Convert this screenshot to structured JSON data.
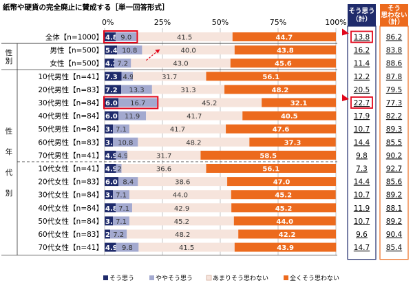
{
  "title": "紙幣や硬貨の完全廃止に賛成する［単一回答形式］",
  "chart_data": {
    "type": "bar",
    "orientation": "horizontal",
    "stacked": true,
    "title": "紙幣や硬貨の完全廃止に賛成する［単一回答形式］",
    "xlim": [
      0,
      100
    ],
    "x_ticks": [
      "0%",
      "25%",
      "50%",
      "75%",
      "100%"
    ],
    "series": [
      {
        "name": "そう思う",
        "color": "#1f2b6b"
      },
      {
        "name": "ややそう思う",
        "color": "#a3a9cf"
      },
      {
        "name": "あまりそう思わない",
        "color": "#f6e4dc"
      },
      {
        "name": "全くそう思わない",
        "color": "#ec6a1d"
      }
    ],
    "side_labels": [
      {
        "label": "性\n別"
      },
      {
        "label": "性\n年\n代\n別"
      }
    ],
    "rows": [
      {
        "label": "全体【n=1000】",
        "values": [
          4.8,
          9.0,
          41.5,
          44.7
        ],
        "agree_total": "13.8",
        "disagree_total": "86.2",
        "group": 0
      },
      {
        "label": "男性【n=500】",
        "values": [
          5.4,
          10.8,
          40.0,
          43.8
        ],
        "agree_total": "16.2",
        "disagree_total": "83.8",
        "group": 1
      },
      {
        "label": "女性【n=500】",
        "values": [
          4.2,
          7.2,
          43.0,
          45.6
        ],
        "agree_total": "11.4",
        "disagree_total": "88.6",
        "group": 1
      },
      {
        "label": "10代男性【n=41】",
        "values": [
          7.3,
          4.9,
          31.7,
          56.1
        ],
        "agree_total": "12.2",
        "disagree_total": "87.8",
        "group": 2
      },
      {
        "label": "20代男性【n=83】",
        "values": [
          7.2,
          13.3,
          31.3,
          48.2
        ],
        "agree_total": "20.5",
        "disagree_total": "79.5",
        "group": 2
      },
      {
        "label": "30代男性【n=84】",
        "values": [
          6.0,
          16.7,
          45.2,
          32.1
        ],
        "agree_total": "22.7",
        "disagree_total": "77.3",
        "group": 2
      },
      {
        "label": "40代男性【n=84】",
        "values": [
          6.0,
          11.9,
          41.7,
          40.5
        ],
        "agree_total": "17.9",
        "disagree_total": "82.2",
        "group": 2
      },
      {
        "label": "50代男性【n=84】",
        "values": [
          3.6,
          7.1,
          41.7,
          47.6
        ],
        "agree_total": "10.7",
        "disagree_total": "89.3",
        "group": 2
      },
      {
        "label": "60代男性【n=83】",
        "values": [
          3.6,
          10.8,
          48.2,
          37.3
        ],
        "agree_total": "14.4",
        "disagree_total": "85.5",
        "group": 2
      },
      {
        "label": "70代男性【n=41】",
        "values": [
          4.9,
          4.9,
          31.7,
          58.5
        ],
        "agree_total": "9.8",
        "disagree_total": "90.2",
        "group": 2
      },
      {
        "label": "10代女性【n=41】",
        "values": [
          4.9,
          2.4,
          36.6,
          56.1
        ],
        "agree_total": "7.3",
        "disagree_total": "92.7",
        "group": 3
      },
      {
        "label": "20代女性【n=83】",
        "values": [
          6.0,
          8.4,
          38.6,
          47.0
        ],
        "agree_total": "14.4",
        "disagree_total": "85.6",
        "group": 3
      },
      {
        "label": "30代女性【n=84】",
        "values": [
          3.6,
          7.1,
          44.0,
          45.2
        ],
        "agree_total": "10.7",
        "disagree_total": "89.2",
        "group": 3
      },
      {
        "label": "40代女性【n=84】",
        "values": [
          4.8,
          7.1,
          42.9,
          45.2
        ],
        "agree_total": "11.9",
        "disagree_total": "88.1",
        "group": 3
      },
      {
        "label": "50代女性【n=84】",
        "values": [
          3.6,
          7.1,
          45.2,
          44.0
        ],
        "agree_total": "10.7",
        "disagree_total": "89.2",
        "group": 3
      },
      {
        "label": "60代女性【n=83】",
        "values": [
          2.4,
          7.2,
          48.2,
          42.2
        ],
        "agree_total": "9.6",
        "disagree_total": "90.4",
        "group": 3
      },
      {
        "label": "70代女性【n=41】",
        "values": [
          4.9,
          9.8,
          41.5,
          43.9
        ],
        "agree_total": "14.7",
        "disagree_total": "85.4",
        "group": 3
      }
    ],
    "highlighted_rows": [
      "全体【n=1000】",
      "30代男性【n=84】"
    ],
    "total_columns": {
      "agree": "そう思う\n（計）",
      "disagree": "そう\n思わない\n（計）"
    }
  }
}
